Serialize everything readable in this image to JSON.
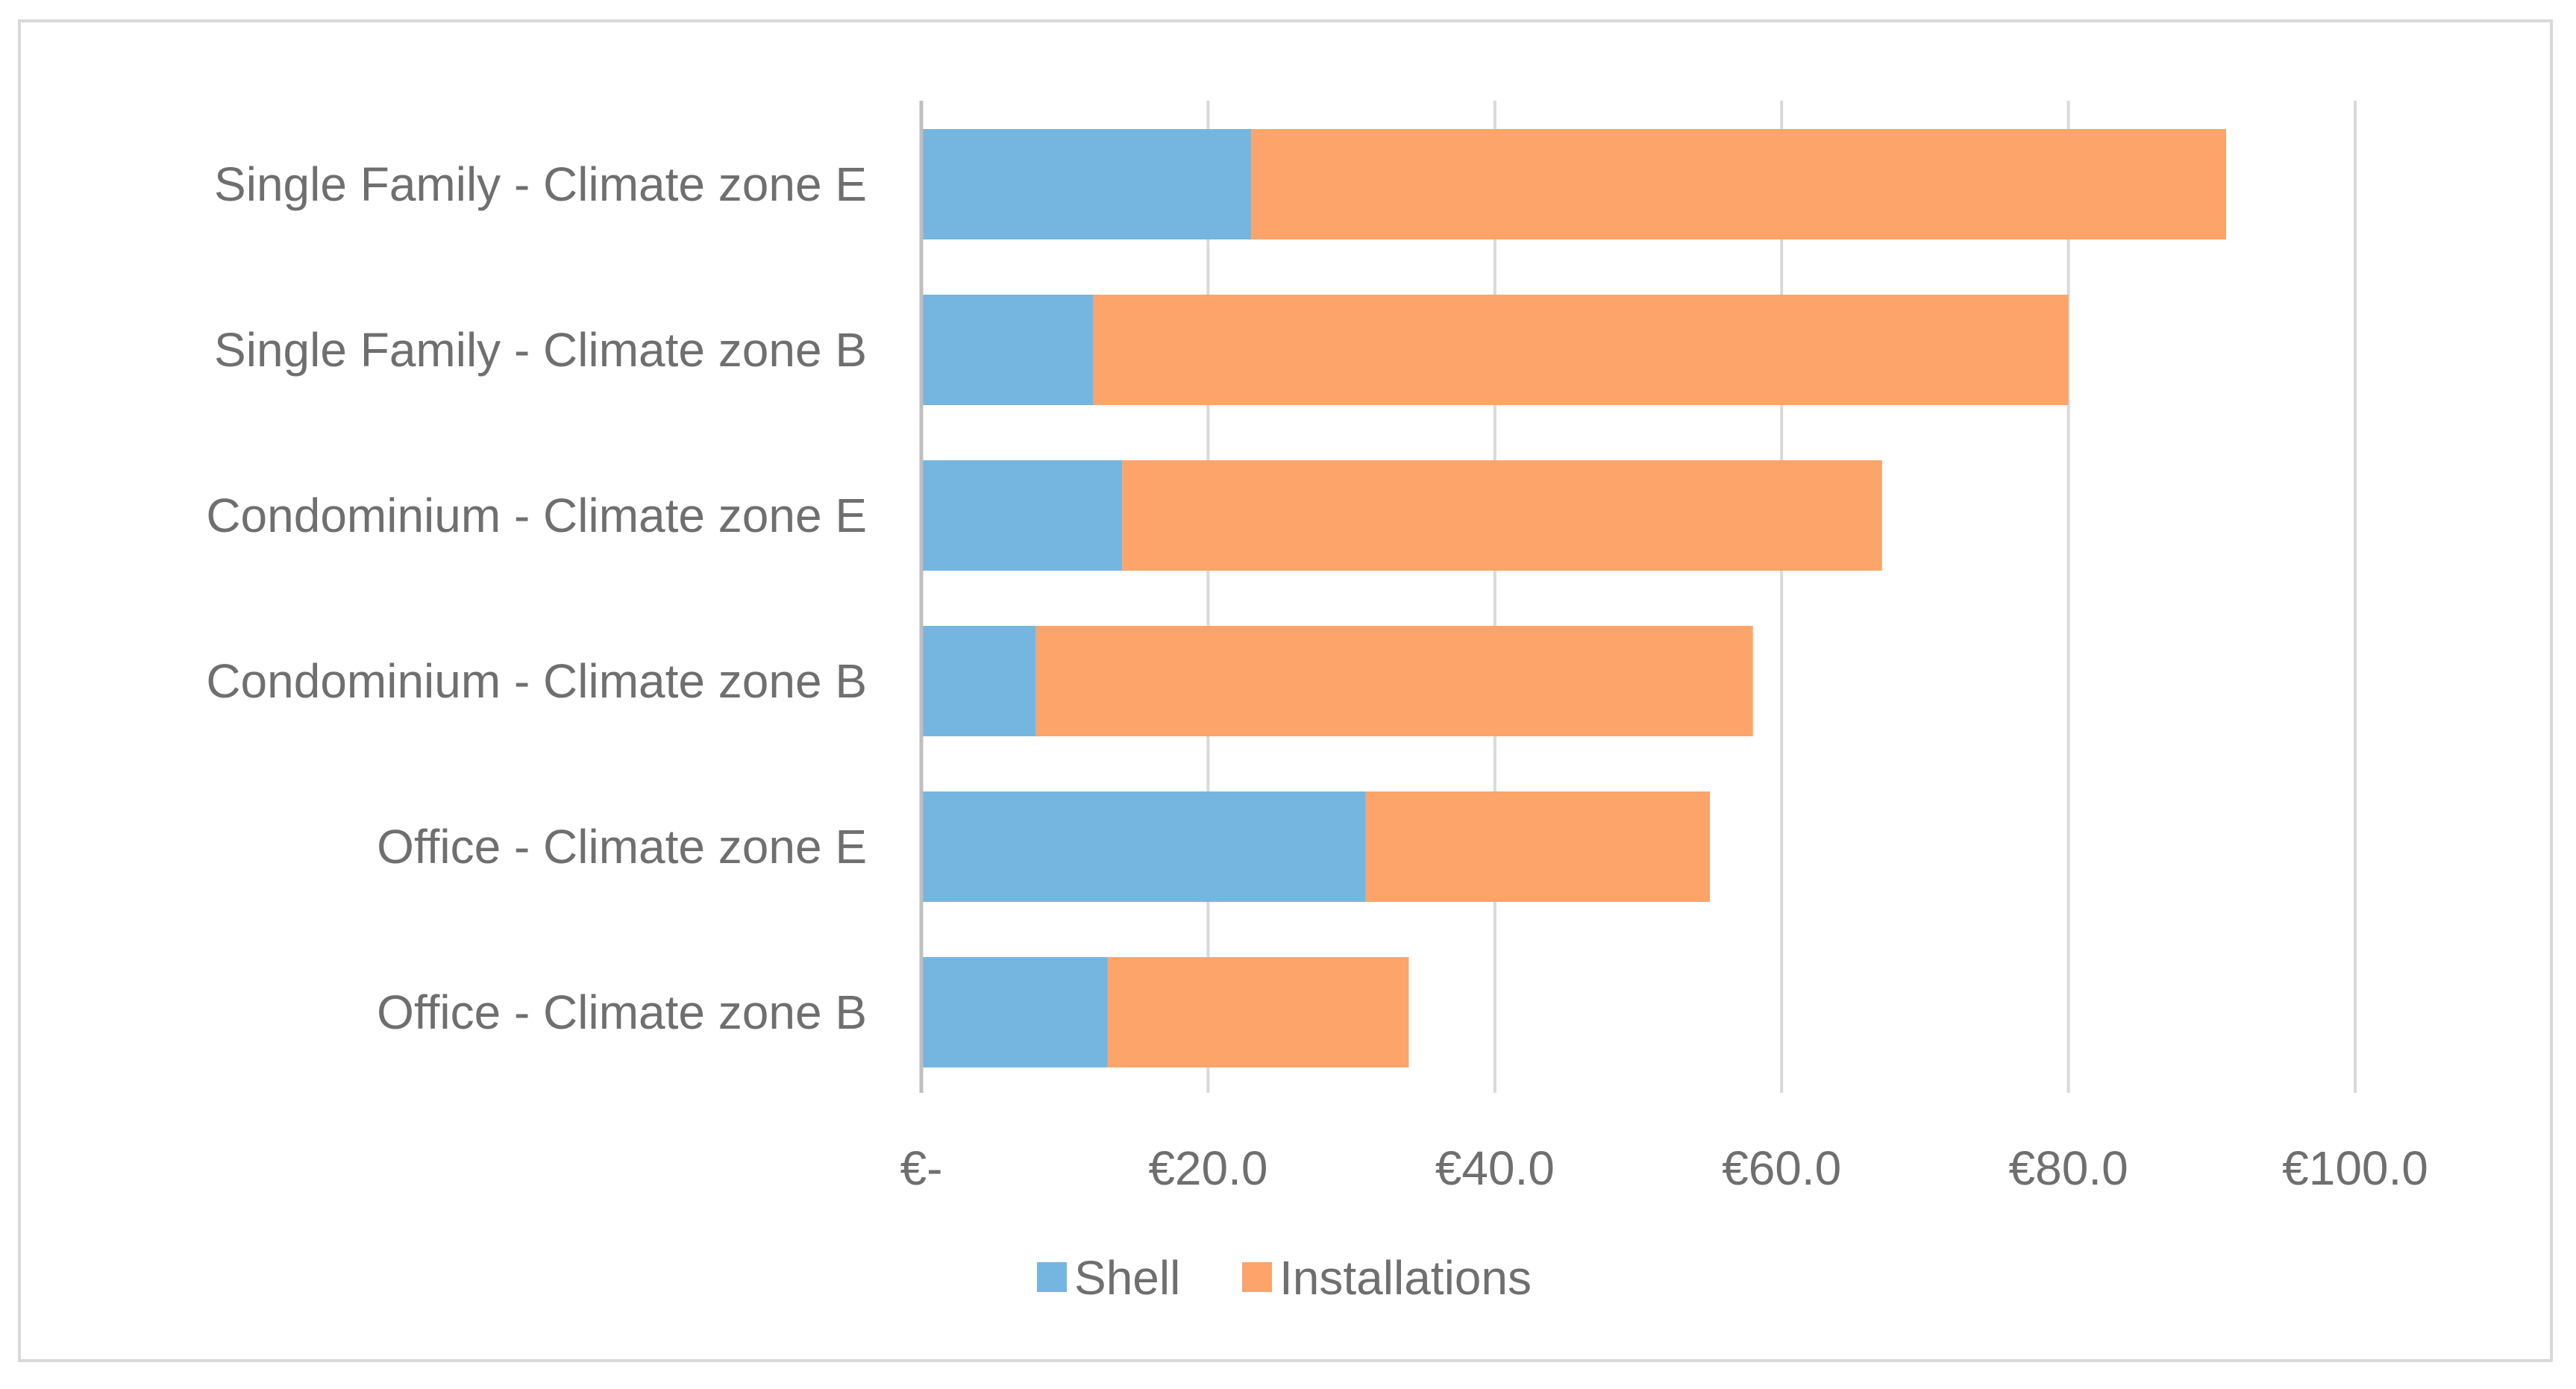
{
  "chart_data": {
    "type": "bar",
    "orientation": "horizontal",
    "stacked": true,
    "categories": [
      "Single Family  - Climate zone E",
      "Single Family - Climate zone B",
      "Condominium - Climate zone E",
      "Condominium - Climate zone B",
      "Office - Climate zone E",
      "Office - Climate zone B"
    ],
    "series": [
      {
        "name": "Shell",
        "color": "#75b6e1",
        "values": [
          23,
          12,
          14,
          8,
          31,
          13
        ]
      },
      {
        "name": "Installations",
        "color": "#fda46b",
        "values": [
          68,
          68,
          53,
          50,
          24,
          21
        ]
      }
    ],
    "x_ticks": [
      {
        "value": 0,
        "label": "€-"
      },
      {
        "value": 20,
        "label": "€20.0"
      },
      {
        "value": 40,
        "label": "€40.0"
      },
      {
        "value": 60,
        "label": "€60.0"
      },
      {
        "value": 80,
        "label": "€80.0"
      },
      {
        "value": 100,
        "label": "€100.0"
      }
    ],
    "xlim": [
      0,
      100
    ],
    "grid": "vertical",
    "legend_position": "bottom",
    "title": "",
    "xlabel": "",
    "ylabel": ""
  }
}
